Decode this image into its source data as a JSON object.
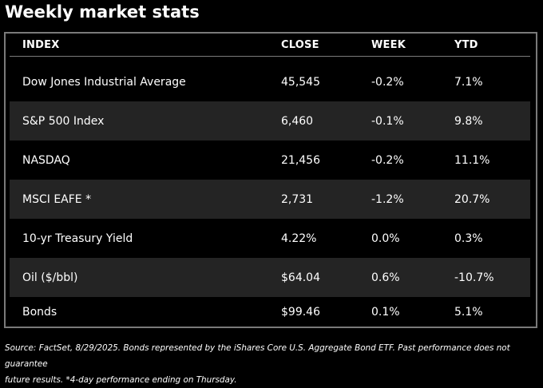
{
  "title": "Weekly market stats",
  "columns": [
    "INDEX",
    "CLOSE",
    "WEEK",
    "YTD"
  ],
  "rows": [
    {
      "index": "Dow Jones Industrial Average",
      "close": "45,545",
      "week": "-0.2%",
      "ytd": "7.1%"
    },
    {
      "index": "S&P 500 Index",
      "close": "6,460",
      "week": "-0.1%",
      "ytd": "9.8%"
    },
    {
      "index": "NASDAQ",
      "close": "21,456",
      "week": "-0.2%",
      "ytd": "11.1%"
    },
    {
      "index": "MSCI EAFE *",
      "close": "2,731",
      "week": "-1.2%",
      "ytd": "20.7%"
    },
    {
      "index": "10-yr Treasury Yield",
      "close": "4.22%",
      "week": "0.0%",
      "ytd": "0.3%"
    },
    {
      "index": "Oil ($/bbl)",
      "close": "$64.04",
      "week": "0.6%",
      "ytd": "-10.7%"
    },
    {
      "index": "Bonds",
      "close": "$99.46",
      "week": "0.1%",
      "ytd": "5.1%"
    }
  ],
  "footer": {
    "line1": "Source: FactSet, 8/29/2025. Bonds represented by the iShares Core U.S. Aggregate Bond ETF. Past performance does not guarantee",
    "line2": "future results. *4-day performance ending on Thursday."
  },
  "colors": {
    "background": "#000000",
    "shaded_row": "#242424",
    "border": "#7a7a7a",
    "text": "#ffffff"
  }
}
